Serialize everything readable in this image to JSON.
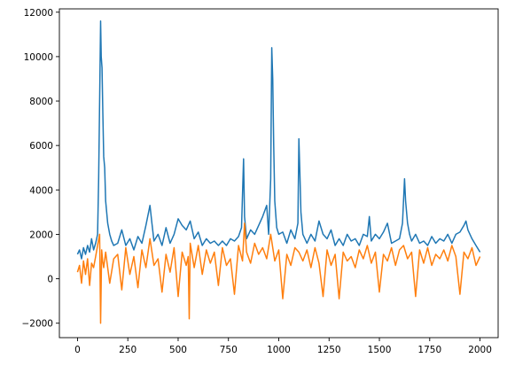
{
  "chart_data": {
    "type": "line",
    "title": "",
    "xlabel": "",
    "ylabel": "",
    "xlim": [
      -90,
      2090
    ],
    "ylim": [
      -2650,
      12150
    ],
    "x_ticks": [
      0,
      250,
      500,
      750,
      1000,
      1250,
      1500,
      1750,
      2000
    ],
    "x_tick_labels": [
      "0",
      "250",
      "500",
      "750",
      "1000",
      "1250",
      "1500",
      "1750",
      "2000"
    ],
    "y_ticks": [
      -2000,
      0,
      2000,
      4000,
      6000,
      8000,
      10000,
      12000
    ],
    "y_tick_labels": [
      "−2000",
      "0",
      "2000",
      "4000",
      "6000",
      "8000",
      "10000",
      "12000"
    ],
    "grid": false,
    "legend": "none",
    "series": [
      {
        "color": "#1f77b4",
        "x": [
          0,
          10,
          20,
          30,
          40,
          50,
          60,
          70,
          80,
          90,
          100,
          105,
          110,
          115,
          118,
          122,
          126,
          130,
          135,
          140,
          150,
          160,
          170,
          180,
          200,
          220,
          240,
          260,
          280,
          300,
          320,
          340,
          360,
          370,
          380,
          400,
          420,
          440,
          460,
          480,
          500,
          520,
          540,
          560,
          580,
          600,
          620,
          640,
          660,
          680,
          700,
          720,
          740,
          760,
          780,
          800,
          815,
          825,
          830,
          840,
          860,
          880,
          900,
          920,
          940,
          950,
          960,
          965,
          970,
          975,
          980,
          990,
          1000,
          1020,
          1040,
          1060,
          1080,
          1095,
          1100,
          1105,
          1110,
          1120,
          1140,
          1160,
          1180,
          1200,
          1220,
          1240,
          1260,
          1280,
          1300,
          1320,
          1340,
          1360,
          1380,
          1400,
          1420,
          1440,
          1450,
          1460,
          1480,
          1500,
          1520,
          1540,
          1560,
          1580,
          1600,
          1615,
          1625,
          1630,
          1640,
          1650,
          1660,
          1680,
          1700,
          1720,
          1740,
          1760,
          1780,
          1800,
          1820,
          1840,
          1860,
          1880,
          1900,
          1920,
          1930,
          1940,
          1960,
          1980,
          2000
        ],
        "y": [
          1100,
          1300,
          900,
          1400,
          1100,
          1500,
          1200,
          1800,
          1300,
          1600,
          2000,
          4500,
          8000,
          11600,
          10000,
          9500,
          7500,
          5500,
          5000,
          3500,
          2500,
          2000,
          1700,
          1500,
          1600,
          2200,
          1500,
          1800,
          1300,
          1900,
          1600,
          2400,
          3300,
          2500,
          1700,
          2000,
          1500,
          2300,
          1600,
          2000,
          2700,
          2400,
          2200,
          2600,
          1800,
          2100,
          1500,
          1800,
          1600,
          1700,
          1500,
          1700,
          1500,
          1800,
          1700,
          1900,
          2300,
          5400,
          2800,
          1800,
          2200,
          2000,
          2400,
          2800,
          3300,
          2000,
          4500,
          10400,
          9000,
          6000,
          3500,
          2300,
          2000,
          2100,
          1600,
          2200,
          1800,
          2500,
          6300,
          4800,
          3000,
          2000,
          1600,
          2000,
          1700,
          2600,
          2000,
          1800,
          2200,
          1500,
          1800,
          1500,
          2000,
          1700,
          1800,
          1500,
          2000,
          1900,
          2800,
          1700,
          2000,
          1800,
          2100,
          2500,
          1600,
          1700,
          1800,
          2500,
          4500,
          3500,
          2500,
          2000,
          1700,
          2000,
          1600,
          1700,
          1500,
          1900,
          1600,
          1800,
          1700,
          2000,
          1600,
          2000,
          2100,
          2400,
          2600,
          2200,
          1800,
          1500,
          1200
        ]
      },
      {
        "color": "#ff7f0e",
        "x": [
          0,
          10,
          20,
          30,
          40,
          50,
          60,
          70,
          80,
          90,
          100,
          110,
          115,
          120,
          125,
          130,
          140,
          160,
          180,
          200,
          220,
          240,
          260,
          280,
          300,
          320,
          340,
          360,
          380,
          400,
          420,
          440,
          460,
          480,
          500,
          520,
          540,
          550,
          555,
          560,
          580,
          600,
          620,
          640,
          660,
          680,
          700,
          720,
          740,
          760,
          780,
          800,
          820,
          830,
          840,
          860,
          880,
          900,
          920,
          940,
          960,
          980,
          1000,
          1020,
          1040,
          1060,
          1080,
          1100,
          1120,
          1140,
          1160,
          1180,
          1200,
          1220,
          1240,
          1260,
          1280,
          1300,
          1320,
          1340,
          1360,
          1380,
          1400,
          1420,
          1440,
          1460,
          1480,
          1500,
          1520,
          1540,
          1560,
          1580,
          1600,
          1620,
          1640,
          1660,
          1680,
          1700,
          1720,
          1740,
          1760,
          1780,
          1800,
          1820,
          1840,
          1860,
          1880,
          1900,
          1920,
          1940,
          1960,
          1980,
          2000
        ],
        "y": [
          300,
          600,
          -200,
          800,
          200,
          900,
          -300,
          700,
          500,
          1000,
          1500,
          2000,
          -2000,
          1300,
          800,
          500,
          1200,
          -200,
          900,
          1100,
          -500,
          1400,
          200,
          1000,
          -400,
          1300,
          500,
          1800,
          600,
          900,
          -600,
          1100,
          300,
          1400,
          -800,
          1200,
          600,
          1000,
          -1800,
          1600,
          500,
          1500,
          200,
          1300,
          700,
          1200,
          -300,
          1400,
          600,
          900,
          -700,
          1500,
          800,
          2500,
          1200,
          700,
          1600,
          1100,
          1400,
          900,
          2000,
          800,
          1300,
          -900,
          1100,
          600,
          1400,
          1200,
          800,
          1300,
          500,
          1400,
          700,
          -800,
          1300,
          600,
          1100,
          -900,
          1200,
          800,
          1000,
          500,
          1300,
          900,
          1500,
          700,
          1200,
          -600,
          1100,
          800,
          1400,
          600,
          1300,
          1500,
          900,
          1200,
          -800,
          1300,
          700,
          1400,
          600,
          1100,
          900,
          1300,
          800,
          1500,
          1000,
          -700,
          1200,
          900,
          1400,
          600,
          1000
        ]
      }
    ]
  }
}
